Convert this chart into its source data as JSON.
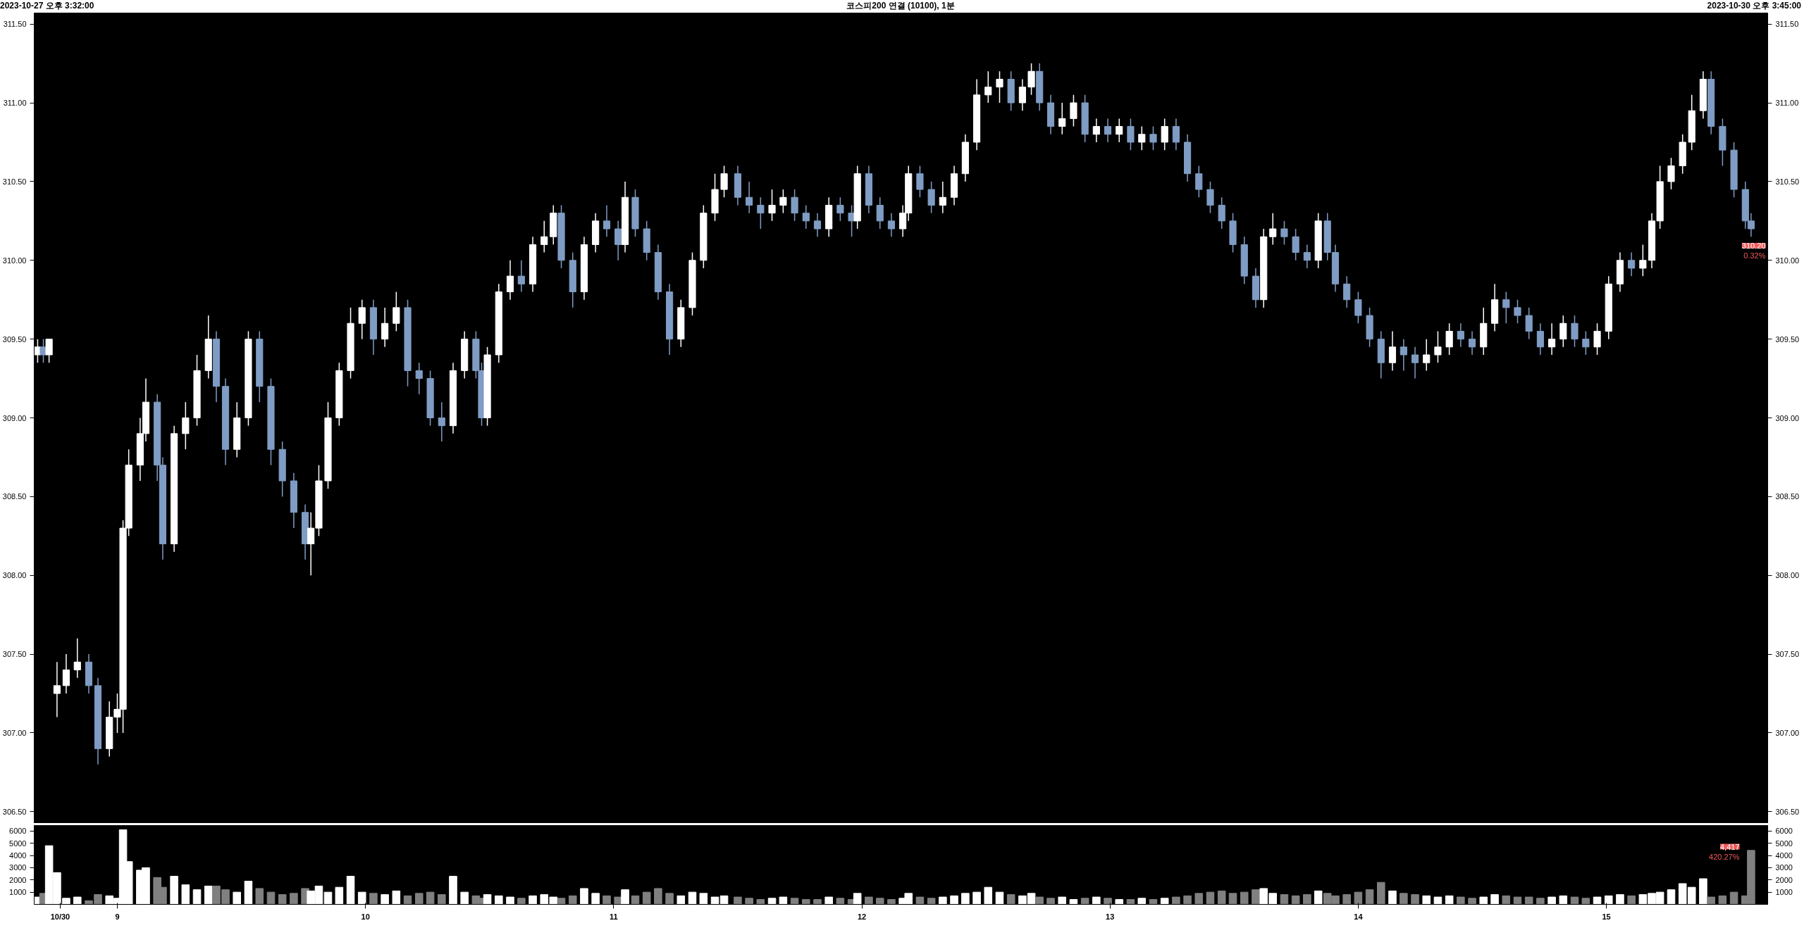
{
  "chart_data": [
    {
      "type": "candlestick",
      "title": "코스피200 연결 (10100), 1분",
      "annotations": [
        "2023-10-27 오후 3:32:00",
        "2023-10-30 오후 3:45:00",
        {
          "text": "310.20",
          "y": 310.2
        },
        {
          "text": "0.32%",
          "y": 310.2
        }
      ],
      "x": [
        8.679,
        8.702,
        8.725,
        8.757,
        8.794,
        8.839,
        8.885,
        8.922,
        8.968,
        9.0,
        9.023,
        9.046,
        9.092,
        9.115,
        9.161,
        9.183,
        9.229,
        9.275,
        9.321,
        9.367,
        9.399,
        9.436,
        9.482,
        9.528,
        9.573,
        9.619,
        9.665,
        9.711,
        9.757,
        9.78,
        9.812,
        9.849,
        9.894,
        9.94,
        9.986,
        10.032,
        10.078,
        10.124,
        10.17,
        10.216,
        10.261,
        10.307,
        10.353,
        10.399,
        10.445,
        10.468,
        10.491,
        10.537,
        10.583,
        10.628,
        10.674,
        10.72,
        10.757,
        10.789,
        10.835,
        10.881,
        10.927,
        10.972,
        11.018,
        11.046,
        11.087,
        11.133,
        11.179,
        11.225,
        11.271,
        11.317,
        11.362,
        11.408,
        11.445,
        11.5,
        11.546,
        11.592,
        11.638,
        11.683,
        11.729,
        11.775,
        11.821,
        11.867,
        11.913,
        11.959,
        11.982,
        12.028,
        12.073,
        12.119,
        12.165,
        12.188,
        12.234,
        12.28,
        12.326,
        12.372,
        12.417,
        12.463,
        12.509,
        12.555,
        12.601,
        12.647,
        12.683,
        12.716,
        12.761,
        12.807,
        12.853,
        12.899,
        12.945,
        12.991,
        13.037,
        13.083,
        13.128,
        13.174,
        13.22,
        13.266,
        13.312,
        13.358,
        13.404,
        13.45,
        13.495,
        13.541,
        13.587,
        13.619,
        13.656,
        13.702,
        13.748,
        13.794,
        13.839,
        13.876,
        13.908,
        13.954,
        14.0,
        14.046,
        14.092,
        14.138,
        14.183,
        14.229,
        14.275,
        14.321,
        14.367,
        14.413,
        14.459,
        14.505,
        14.55,
        14.596,
        14.642,
        14.688,
        14.734,
        14.78,
        14.826,
        14.872,
        14.917,
        14.963,
        15.009,
        15.055,
        15.101,
        15.147,
        15.183,
        15.216,
        15.261,
        15.307,
        15.344,
        15.39,
        15.422,
        15.468,
        15.514,
        15.56,
        15.583
      ],
      "ohlc": [
        [
          309.4,
          309.5,
          309.35,
          309.45
        ],
        [
          309.45,
          309.5,
          309.35,
          309.4
        ],
        [
          309.4,
          309.5,
          309.35,
          309.5
        ],
        [
          307.25,
          307.45,
          307.1,
          307.3
        ],
        [
          307.3,
          307.5,
          307.25,
          307.4
        ],
        [
          307.4,
          307.6,
          307.35,
          307.45
        ],
        [
          307.45,
          307.5,
          307.25,
          307.3
        ],
        [
          307.3,
          307.35,
          306.8,
          306.9
        ],
        [
          306.9,
          307.2,
          306.85,
          307.1
        ],
        [
          307.1,
          307.25,
          307.0,
          307.15
        ],
        [
          307.15,
          308.35,
          307.0,
          308.3
        ],
        [
          308.3,
          308.8,
          308.25,
          308.7
        ],
        [
          308.7,
          309.0,
          308.6,
          308.9
        ],
        [
          308.9,
          309.25,
          308.85,
          309.1
        ],
        [
          309.1,
          309.15,
          308.6,
          308.7
        ],
        [
          308.7,
          308.75,
          308.1,
          308.2
        ],
        [
          308.2,
          308.95,
          308.15,
          308.9
        ],
        [
          308.9,
          309.1,
          308.8,
          309.0
        ],
        [
          309.0,
          309.4,
          308.95,
          309.3
        ],
        [
          309.3,
          309.65,
          309.25,
          309.5
        ],
        [
          309.5,
          309.55,
          309.1,
          309.2
        ],
        [
          309.2,
          309.25,
          308.7,
          308.8
        ],
        [
          308.8,
          309.1,
          308.75,
          309.0
        ],
        [
          309.0,
          309.55,
          308.95,
          309.5
        ],
        [
          309.5,
          309.55,
          309.1,
          309.2
        ],
        [
          309.2,
          309.25,
          308.7,
          308.8
        ],
        [
          308.8,
          308.85,
          308.5,
          308.6
        ],
        [
          308.6,
          308.65,
          308.3,
          308.4
        ],
        [
          308.4,
          308.45,
          308.1,
          308.2
        ],
        [
          308.2,
          308.4,
          308.0,
          308.3
        ],
        [
          308.3,
          308.7,
          308.25,
          308.6
        ],
        [
          308.6,
          309.1,
          308.55,
          309.0
        ],
        [
          309.0,
          309.35,
          308.95,
          309.3
        ],
        [
          309.3,
          309.7,
          309.25,
          309.6
        ],
        [
          309.6,
          309.75,
          309.5,
          309.7
        ],
        [
          309.7,
          309.75,
          309.4,
          309.5
        ],
        [
          309.5,
          309.7,
          309.45,
          309.6
        ],
        [
          309.6,
          309.8,
          309.55,
          309.7
        ],
        [
          309.7,
          309.75,
          309.2,
          309.3
        ],
        [
          309.3,
          309.35,
          309.15,
          309.25
        ],
        [
          309.25,
          309.3,
          308.95,
          309.0
        ],
        [
          309.0,
          309.1,
          308.85,
          308.95
        ],
        [
          308.95,
          309.35,
          308.9,
          309.3
        ],
        [
          309.3,
          309.55,
          309.25,
          309.5
        ],
        [
          309.5,
          309.55,
          309.25,
          309.3
        ],
        [
          309.3,
          309.35,
          308.95,
          309.0
        ],
        [
          309.0,
          309.45,
          308.95,
          309.4
        ],
        [
          309.4,
          309.85,
          309.35,
          309.8
        ],
        [
          309.8,
          310.0,
          309.75,
          309.9
        ],
        [
          309.9,
          310.0,
          309.8,
          309.85
        ],
        [
          309.85,
          310.15,
          309.8,
          310.1
        ],
        [
          310.1,
          310.25,
          310.05,
          310.15
        ],
        [
          310.15,
          310.35,
          310.1,
          310.3
        ],
        [
          310.3,
          310.35,
          309.95,
          310.0
        ],
        [
          310.0,
          310.05,
          309.7,
          309.8
        ],
        [
          309.8,
          310.15,
          309.75,
          310.1
        ],
        [
          310.1,
          310.3,
          310.05,
          310.25
        ],
        [
          310.25,
          310.35,
          310.15,
          310.2
        ],
        [
          310.2,
          310.25,
          310.0,
          310.1
        ],
        [
          310.1,
          310.5,
          310.05,
          310.4
        ],
        [
          310.4,
          310.45,
          310.15,
          310.2
        ],
        [
          310.2,
          310.25,
          310.0,
          310.05
        ],
        [
          310.05,
          310.1,
          309.75,
          309.8
        ],
        [
          309.8,
          309.85,
          309.4,
          309.5
        ],
        [
          309.5,
          309.75,
          309.45,
          309.7
        ],
        [
          309.7,
          310.05,
          309.65,
          310.0
        ],
        [
          310.0,
          310.35,
          309.95,
          310.3
        ],
        [
          310.3,
          310.55,
          310.25,
          310.45
        ],
        [
          310.45,
          310.6,
          310.4,
          310.55
        ],
        [
          310.55,
          310.6,
          310.35,
          310.4
        ],
        [
          310.4,
          310.5,
          310.3,
          310.35
        ],
        [
          310.35,
          310.4,
          310.2,
          310.3
        ],
        [
          310.3,
          310.45,
          310.25,
          310.35
        ],
        [
          310.35,
          310.45,
          310.3,
          310.4
        ],
        [
          310.4,
          310.45,
          310.25,
          310.3
        ],
        [
          310.3,
          310.35,
          310.2,
          310.25
        ],
        [
          310.25,
          310.3,
          310.15,
          310.2
        ],
        [
          310.2,
          310.4,
          310.15,
          310.35
        ],
        [
          310.35,
          310.4,
          310.25,
          310.3
        ],
        [
          310.3,
          310.35,
          310.15,
          310.25
        ],
        [
          310.25,
          310.6,
          310.2,
          310.55
        ],
        [
          310.55,
          310.6,
          310.3,
          310.35
        ],
        [
          310.35,
          310.4,
          310.2,
          310.25
        ],
        [
          310.25,
          310.3,
          310.15,
          310.2
        ],
        [
          310.2,
          310.35,
          310.15,
          310.3
        ],
        [
          310.3,
          310.6,
          310.25,
          310.55
        ],
        [
          310.55,
          310.6,
          310.4,
          310.45
        ],
        [
          310.45,
          310.5,
          310.3,
          310.35
        ],
        [
          310.35,
          310.5,
          310.3,
          310.4
        ],
        [
          310.4,
          310.6,
          310.35,
          310.55
        ],
        [
          310.55,
          310.8,
          310.5,
          310.75
        ],
        [
          310.75,
          311.15,
          310.7,
          311.05
        ],
        [
          311.05,
          311.2,
          311.0,
          311.1
        ],
        [
          311.1,
          311.2,
          311.0,
          311.15
        ],
        [
          311.15,
          311.2,
          310.95,
          311.0
        ],
        [
          311.0,
          311.15,
          310.95,
          311.1
        ],
        [
          311.1,
          311.25,
          311.05,
          311.2
        ],
        [
          311.2,
          311.25,
          310.95,
          311.0
        ],
        [
          311.0,
          311.05,
          310.8,
          310.85
        ],
        [
          310.85,
          311.0,
          310.8,
          310.9
        ],
        [
          310.9,
          311.05,
          310.85,
          311.0
        ],
        [
          311.0,
          311.05,
          310.75,
          310.8
        ],
        [
          310.8,
          310.9,
          310.75,
          310.85
        ],
        [
          310.85,
          310.9,
          310.75,
          310.8
        ],
        [
          310.8,
          310.9,
          310.75,
          310.85
        ],
        [
          310.85,
          310.9,
          310.7,
          310.75
        ],
        [
          310.75,
          310.85,
          310.7,
          310.8
        ],
        [
          310.8,
          310.85,
          310.7,
          310.75
        ],
        [
          310.75,
          310.9,
          310.7,
          310.85
        ],
        [
          310.85,
          310.9,
          310.7,
          310.75
        ],
        [
          310.75,
          310.8,
          310.5,
          310.55
        ],
        [
          310.55,
          310.6,
          310.4,
          310.45
        ],
        [
          310.45,
          310.5,
          310.3,
          310.35
        ],
        [
          310.35,
          310.4,
          310.2,
          310.25
        ],
        [
          310.25,
          310.3,
          310.05,
          310.1
        ],
        [
          310.1,
          310.15,
          309.85,
          309.9
        ],
        [
          309.9,
          309.95,
          309.7,
          309.75
        ],
        [
          309.75,
          310.2,
          309.7,
          310.15
        ],
        [
          310.15,
          310.3,
          310.1,
          310.2
        ],
        [
          310.2,
          310.25,
          310.1,
          310.15
        ],
        [
          310.15,
          310.2,
          310.0,
          310.05
        ],
        [
          310.05,
          310.1,
          309.95,
          310.0
        ],
        [
          310.0,
          310.3,
          309.95,
          310.25
        ],
        [
          310.25,
          310.3,
          310.0,
          310.05
        ],
        [
          310.05,
          310.1,
          309.8,
          309.85
        ],
        [
          309.85,
          309.9,
          309.7,
          309.75
        ],
        [
          309.75,
          309.8,
          309.6,
          309.65
        ],
        [
          309.65,
          309.7,
          309.45,
          309.5
        ],
        [
          309.5,
          309.55,
          309.25,
          309.35
        ],
        [
          309.35,
          309.55,
          309.3,
          309.45
        ],
        [
          309.45,
          309.5,
          309.3,
          309.4
        ],
        [
          309.4,
          309.45,
          309.25,
          309.35
        ],
        [
          309.35,
          309.5,
          309.3,
          309.4
        ],
        [
          309.4,
          309.55,
          309.35,
          309.45
        ],
        [
          309.45,
          309.6,
          309.4,
          309.55
        ],
        [
          309.55,
          309.6,
          309.45,
          309.5
        ],
        [
          309.5,
          309.55,
          309.4,
          309.45
        ],
        [
          309.45,
          309.7,
          309.4,
          309.6
        ],
        [
          309.6,
          309.85,
          309.55,
          309.75
        ],
        [
          309.75,
          309.8,
          309.6,
          309.7
        ],
        [
          309.7,
          309.75,
          309.6,
          309.65
        ],
        [
          309.65,
          309.7,
          309.5,
          309.55
        ],
        [
          309.55,
          309.6,
          309.4,
          309.45
        ],
        [
          309.45,
          309.6,
          309.4,
          309.5
        ],
        [
          309.5,
          309.65,
          309.45,
          309.6
        ],
        [
          309.6,
          309.65,
          309.45,
          309.5
        ],
        [
          309.5,
          309.55,
          309.4,
          309.45
        ],
        [
          309.45,
          309.6,
          309.4,
          309.55
        ],
        [
          309.55,
          309.9,
          309.5,
          309.85
        ],
        [
          309.85,
          310.05,
          309.8,
          310.0
        ],
        [
          310.0,
          310.05,
          309.9,
          309.95
        ],
        [
          309.95,
          310.1,
          309.9,
          310.0
        ],
        [
          310.0,
          310.3,
          309.95,
          310.25
        ],
        [
          310.25,
          310.6,
          310.2,
          310.5
        ],
        [
          310.5,
          310.65,
          310.45,
          310.6
        ],
        [
          310.6,
          310.8,
          310.55,
          310.75
        ],
        [
          310.75,
          311.05,
          310.7,
          310.95
        ],
        [
          310.95,
          311.2,
          310.9,
          311.15
        ],
        [
          311.15,
          311.2,
          310.8,
          310.85
        ],
        [
          310.85,
          310.9,
          310.6,
          310.7
        ],
        [
          310.7,
          310.75,
          310.4,
          310.45
        ],
        [
          310.45,
          310.5,
          310.2,
          310.25
        ],
        [
          310.25,
          310.3,
          310.15,
          310.2
        ]
      ],
      "colors": [
        "#ffffff",
        "#7f9cc4",
        "#ffffff",
        "#ffffff",
        "#ffffff",
        "#ffffff",
        "#7f9cc4",
        "#7f9cc4",
        "#ffffff",
        "#ffffff",
        "#ffffff",
        "#ffffff",
        "#ffffff",
        "#ffffff",
        "#7f9cc4",
        "#7f9cc4",
        "#ffffff",
        "#ffffff",
        "#ffffff",
        "#ffffff",
        "#7f9cc4",
        "#7f9cc4",
        "#ffffff",
        "#ffffff",
        "#7f9cc4",
        "#7f9cc4",
        "#7f9cc4",
        "#7f9cc4",
        "#7f9cc4",
        "#ffffff",
        "#ffffff",
        "#ffffff",
        "#ffffff",
        "#ffffff",
        "#ffffff",
        "#7f9cc4",
        "#ffffff",
        "#ffffff",
        "#7f9cc4",
        "#7f9cc4",
        "#7f9cc4",
        "#7f9cc4",
        "#ffffff",
        "#ffffff",
        "#7f9cc4",
        "#7f9cc4",
        "#ffffff",
        "#ffffff",
        "#ffffff",
        "#7f9cc4",
        "#ffffff",
        "#ffffff",
        "#ffffff",
        "#7f9cc4",
        "#7f9cc4",
        "#ffffff",
        "#ffffff",
        "#7f9cc4",
        "#7f9cc4",
        "#ffffff",
        "#7f9cc4",
        "#7f9cc4",
        "#7f9cc4",
        "#7f9cc4",
        "#ffffff",
        "#ffffff",
        "#ffffff",
        "#ffffff",
        "#ffffff",
        "#7f9cc4",
        "#7f9cc4",
        "#7f9cc4",
        "#ffffff",
        "#ffffff",
        "#7f9cc4",
        "#7f9cc4",
        "#7f9cc4",
        "#ffffff",
        "#7f9cc4",
        "#7f9cc4",
        "#ffffff",
        "#7f9cc4",
        "#7f9cc4",
        "#7f9cc4",
        "#ffffff",
        "#ffffff",
        "#7f9cc4",
        "#7f9cc4",
        "#ffffff",
        "#ffffff",
        "#ffffff",
        "#ffffff",
        "#ffffff",
        "#ffffff",
        "#7f9cc4",
        "#ffffff",
        "#ffffff",
        "#7f9cc4",
        "#7f9cc4",
        "#ffffff",
        "#ffffff",
        "#7f9cc4",
        "#ffffff",
        "#7f9cc4",
        "#ffffff",
        "#7f9cc4",
        "#ffffff",
        "#7f9cc4",
        "#ffffff",
        "#7f9cc4",
        "#7f9cc4",
        "#7f9cc4",
        "#7f9cc4",
        "#7f9cc4",
        "#7f9cc4",
        "#7f9cc4",
        "#7f9cc4",
        "#ffffff",
        "#ffffff",
        "#7f9cc4",
        "#7f9cc4",
        "#7f9cc4",
        "#ffffff",
        "#7f9cc4",
        "#7f9cc4",
        "#7f9cc4",
        "#7f9cc4",
        "#7f9cc4",
        "#7f9cc4",
        "#ffffff",
        "#7f9cc4",
        "#7f9cc4",
        "#ffffff",
        "#ffffff",
        "#ffffff",
        "#7f9cc4",
        "#7f9cc4",
        "#ffffff",
        "#ffffff",
        "#7f9cc4",
        "#7f9cc4",
        "#7f9cc4",
        "#7f9cc4",
        "#ffffff",
        "#ffffff",
        "#7f9cc4",
        "#7f9cc4",
        "#ffffff",
        "#ffffff",
        "#ffffff",
        "#7f9cc4",
        "#ffffff",
        "#ffffff",
        "#ffffff",
        "#ffffff",
        "#ffffff",
        "#ffffff",
        "#ffffff",
        "#7f9cc4",
        "#7f9cc4",
        "#7f9cc4",
        "#7f9cc4",
        "#7f9cc4"
      ],
      "xlim": [
        8.665,
        15.65
      ],
      "ylim": [
        306.43,
        311.57
      ],
      "yticks": [
        {
          "value": 306.5,
          "label": "306.50"
        },
        {
          "value": 307,
          "label": "307.00"
        },
        {
          "value": 307.5,
          "label": "307.50"
        },
        {
          "value": 308,
          "label": "308.00"
        },
        {
          "value": 308.5,
          "label": "308.50"
        },
        {
          "value": 309,
          "label": "309.00"
        },
        {
          "value": 309.5,
          "label": "309.50"
        },
        {
          "value": 310,
          "label": "310.00"
        },
        {
          "value": 310.5,
          "label": "310.50"
        },
        {
          "value": 311,
          "label": "311.00"
        },
        {
          "value": 311.5,
          "label": "311.50"
        }
      ],
      "y2lim": [
        306.43,
        311.57
      ],
      "y2ticks": [
        {
          "value": 306.5,
          "label": "306.50"
        },
        {
          "value": 307,
          "label": "307.00"
        },
        {
          "value": 307.5,
          "label": "307.50"
        },
        {
          "value": 308,
          "label": "308.00"
        },
        {
          "value": 308.5,
          "label": "308.50"
        },
        {
          "value": 309,
          "label": "309.00"
        },
        {
          "value": 309.5,
          "label": "309.50"
        },
        {
          "value": 310,
          "label": "310.00"
        },
        {
          "value": 310.5,
          "label": "310.50"
        },
        {
          "value": 311,
          "label": "311.00"
        },
        {
          "value": 311.5,
          "label": "311.50"
        }
      ],
      "tick_labels": "y"
    },
    {
      "type": "bar",
      "annotations": [
        "4,417",
        "420.27%"
      ],
      "x": [
        8.679,
        8.702,
        8.725,
        8.757,
        8.794,
        8.839,
        8.885,
        8.922,
        8.968,
        9.0,
        9.023,
        9.046,
        9.092,
        9.115,
        9.161,
        9.183,
        9.229,
        9.275,
        9.321,
        9.367,
        9.399,
        9.436,
        9.482,
        9.528,
        9.573,
        9.619,
        9.665,
        9.711,
        9.757,
        9.78,
        9.812,
        9.849,
        9.894,
        9.94,
        9.986,
        10.032,
        10.078,
        10.124,
        10.17,
        10.216,
        10.261,
        10.307,
        10.353,
        10.399,
        10.445,
        10.468,
        10.491,
        10.537,
        10.583,
        10.628,
        10.674,
        10.72,
        10.757,
        10.789,
        10.835,
        10.881,
        10.927,
        10.972,
        11.018,
        11.046,
        11.087,
        11.133,
        11.179,
        11.225,
        11.271,
        11.317,
        11.362,
        11.408,
        11.445,
        11.5,
        11.546,
        11.592,
        11.638,
        11.683,
        11.729,
        11.775,
        11.821,
        11.867,
        11.913,
        11.959,
        11.982,
        12.028,
        12.073,
        12.119,
        12.165,
        12.188,
        12.234,
        12.28,
        12.326,
        12.372,
        12.417,
        12.463,
        12.509,
        12.555,
        12.601,
        12.647,
        12.683,
        12.716,
        12.761,
        12.807,
        12.853,
        12.899,
        12.945,
        12.991,
        13.037,
        13.083,
        13.128,
        13.174,
        13.22,
        13.266,
        13.312,
        13.358,
        13.404,
        13.45,
        13.495,
        13.541,
        13.587,
        13.619,
        13.656,
        13.702,
        13.748,
        13.794,
        13.839,
        13.876,
        13.908,
        13.954,
        14.0,
        14.046,
        14.092,
        14.138,
        14.183,
        14.229,
        14.275,
        14.321,
        14.367,
        14.413,
        14.459,
        14.505,
        14.55,
        14.596,
        14.642,
        14.688,
        14.734,
        14.78,
        14.826,
        14.872,
        14.917,
        14.963,
        15.009,
        15.055,
        15.101,
        15.147,
        15.183,
        15.216,
        15.261,
        15.307,
        15.344,
        15.39,
        15.422,
        15.468,
        15.514,
        15.56,
        15.583
      ],
      "values": [
        600,
        900,
        4800,
        2600,
        500,
        600,
        300,
        800,
        700,
        500,
        6100,
        3500,
        2800,
        3000,
        2200,
        1400,
        2300,
        1600,
        1200,
        1500,
        1500,
        1200,
        1000,
        1900,
        1300,
        1000,
        800,
        900,
        1300,
        1100,
        1500,
        1000,
        1400,
        2300,
        1000,
        900,
        800,
        1100,
        700,
        900,
        1000,
        800,
        2300,
        1000,
        700,
        500,
        800,
        700,
        600,
        500,
        700,
        800,
        600,
        500,
        700,
        1300,
        900,
        700,
        600,
        1200,
        700,
        1000,
        1300,
        900,
        700,
        1000,
        900,
        600,
        700,
        600,
        500,
        400,
        500,
        600,
        500,
        400,
        400,
        600,
        500,
        400,
        900,
        600,
        500,
        400,
        500,
        900,
        600,
        500,
        600,
        700,
        900,
        1000,
        1400,
        1000,
        800,
        700,
        900,
        600,
        500,
        600,
        400,
        500,
        600,
        500,
        400,
        400,
        500,
        400,
        500,
        600,
        700,
        900,
        1000,
        1100,
        900,
        1000,
        1200,
        1300,
        900,
        800,
        700,
        800,
        1100,
        900,
        700,
        800,
        1000,
        1200,
        1800,
        1100,
        900,
        800,
        700,
        600,
        700,
        600,
        500,
        600,
        800,
        700,
        600,
        600,
        500,
        600,
        700,
        600,
        500,
        600,
        700,
        800,
        700,
        800,
        900,
        1000,
        1200,
        1700,
        1400,
        2100,
        600,
        700,
        1000,
        700,
        4417
      ],
      "colors": [
        "#ffffff",
        "#808080",
        "#ffffff",
        "#ffffff",
        "#ffffff",
        "#ffffff",
        "#808080",
        "#808080",
        "#ffffff",
        "#ffffff",
        "#ffffff",
        "#ffffff",
        "#ffffff",
        "#ffffff",
        "#808080",
        "#808080",
        "#ffffff",
        "#ffffff",
        "#ffffff",
        "#ffffff",
        "#808080",
        "#808080",
        "#ffffff",
        "#ffffff",
        "#808080",
        "#808080",
        "#808080",
        "#808080",
        "#808080",
        "#ffffff",
        "#ffffff",
        "#ffffff",
        "#ffffff",
        "#ffffff",
        "#ffffff",
        "#808080",
        "#ffffff",
        "#ffffff",
        "#808080",
        "#808080",
        "#808080",
        "#808080",
        "#ffffff",
        "#ffffff",
        "#808080",
        "#808080",
        "#ffffff",
        "#ffffff",
        "#ffffff",
        "#808080",
        "#ffffff",
        "#ffffff",
        "#ffffff",
        "#808080",
        "#808080",
        "#ffffff",
        "#ffffff",
        "#808080",
        "#808080",
        "#ffffff",
        "#808080",
        "#808080",
        "#808080",
        "#808080",
        "#ffffff",
        "#ffffff",
        "#ffffff",
        "#ffffff",
        "#ffffff",
        "#808080",
        "#808080",
        "#808080",
        "#ffffff",
        "#ffffff",
        "#808080",
        "#808080",
        "#808080",
        "#ffffff",
        "#808080",
        "#808080",
        "#ffffff",
        "#808080",
        "#808080",
        "#808080",
        "#ffffff",
        "#ffffff",
        "#808080",
        "#808080",
        "#ffffff",
        "#ffffff",
        "#ffffff",
        "#ffffff",
        "#ffffff",
        "#ffffff",
        "#808080",
        "#ffffff",
        "#ffffff",
        "#808080",
        "#808080",
        "#ffffff",
        "#ffffff",
        "#808080",
        "#ffffff",
        "#808080",
        "#ffffff",
        "#808080",
        "#ffffff",
        "#808080",
        "#ffffff",
        "#808080",
        "#808080",
        "#808080",
        "#808080",
        "#808080",
        "#808080",
        "#808080",
        "#808080",
        "#ffffff",
        "#ffffff",
        "#808080",
        "#808080",
        "#808080",
        "#ffffff",
        "#808080",
        "#808080",
        "#808080",
        "#808080",
        "#808080",
        "#808080",
        "#ffffff",
        "#808080",
        "#808080",
        "#ffffff",
        "#ffffff",
        "#ffffff",
        "#808080",
        "#808080",
        "#ffffff",
        "#ffffff",
        "#808080",
        "#808080",
        "#808080",
        "#808080",
        "#ffffff",
        "#ffffff",
        "#808080",
        "#808080",
        "#ffffff",
        "#ffffff",
        "#ffffff",
        "#808080",
        "#ffffff",
        "#ffffff",
        "#ffffff",
        "#ffffff",
        "#ffffff",
        "#ffffff",
        "#ffffff",
        "#808080",
        "#808080",
        "#808080",
        "#808080",
        "#808080"
      ],
      "xlim": [
        8.665,
        15.65
      ],
      "xticks": [
        {
          "value": 8.77,
          "label": "10/30"
        },
        9,
        10,
        11,
        12,
        13,
        14,
        15
      ],
      "ylim": [
        0,
        6450
      ],
      "yticks": [
        1000,
        2000,
        3000,
        4000,
        5000,
        6000
      ],
      "y2lim": [
        0,
        6450
      ],
      "y2ticks": [
        1000,
        2000,
        3000,
        4000,
        5000,
        6000
      ]
    }
  ]
}
